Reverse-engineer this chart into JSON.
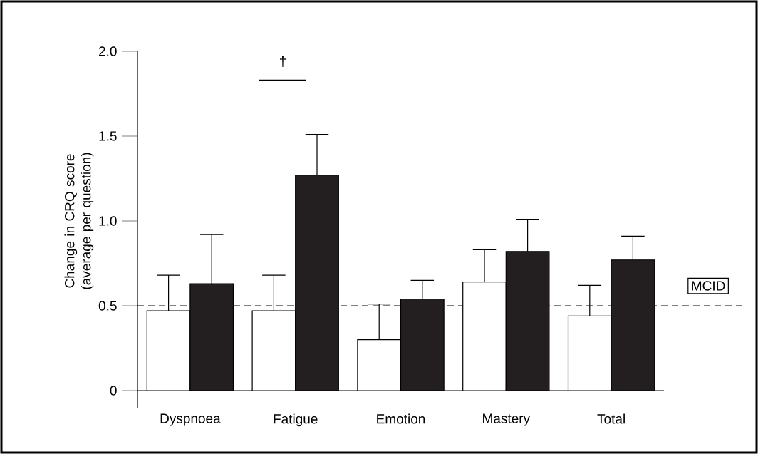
{
  "chart_data": {
    "type": "bar",
    "ylabel": "Change in CRQ score (average per question)",
    "categories": [
      "Dyspnoea",
      "Fatigue",
      "Emotion",
      "Mastery",
      "Total"
    ],
    "series": [
      {
        "color": "#ffffff",
        "values": [
          0.47,
          0.47,
          0.3,
          0.64,
          0.44
        ],
        "errors": [
          [
            0.47,
            0.68
          ],
          [
            0.47,
            0.68
          ],
          [
            0.3,
            0.51
          ],
          [
            0.64,
            0.83
          ],
          [
            0.44,
            0.62
          ]
        ]
      },
      {
        "color": "#231f20",
        "values": [
          0.63,
          1.27,
          0.54,
          0.82,
          0.77
        ],
        "errors": [
          [
            0.63,
            0.92
          ],
          [
            1.27,
            1.51
          ],
          [
            0.54,
            0.65
          ],
          [
            0.82,
            1.01
          ],
          [
            0.77,
            0.91
          ]
        ]
      }
    ],
    "ylim": [
      0,
      2.0
    ],
    "yticks": [
      0,
      {
        "value": 0.5,
        "label": "0.5"
      },
      {
        "value": 1.0,
        "label": "1.0"
      },
      {
        "value": 1.5,
        "label": "1.5"
      },
      {
        "value": 2.0,
        "label": "2.0"
      }
    ],
    "grid": false,
    "ref_lines": [
      {
        "axis": "y",
        "value": 0.5,
        "label": "MCID",
        "line_style": "dashed"
      }
    ],
    "annotations": [
      "†"
    ]
  }
}
